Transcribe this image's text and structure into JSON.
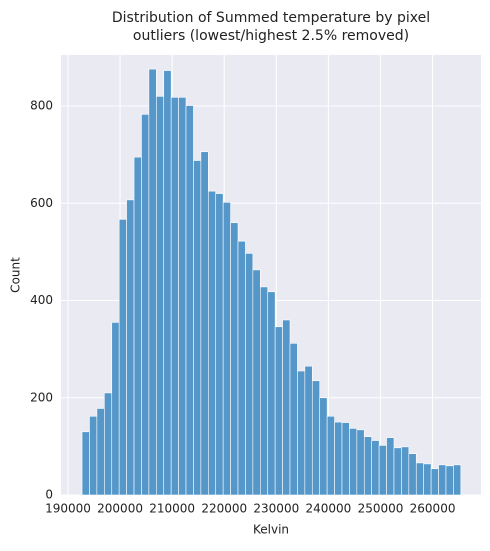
{
  "chart_data": {
    "type": "histogram",
    "title": [
      "Distribution of Summed temperature by pixel",
      "outliers (lowest/highest 2.5% removed)"
    ],
    "xlabel": "Kelvin",
    "ylabel": "Count",
    "bins": [
      192700,
      194126,
      195552,
      196978,
      198404,
      199830,
      201256,
      202682,
      204108,
      205534,
      206960,
      208386,
      209812,
      211238,
      212664,
      214090,
      215516,
      216942,
      218368,
      219794,
      221220,
      222646,
      224072,
      225498,
      226924,
      228350,
      229776,
      231202,
      232628,
      234054,
      235480,
      236906,
      238332,
      239758,
      241184,
      242610,
      244036,
      245462,
      246888,
      248314,
      249740,
      251166,
      252592,
      254018,
      255444,
      256870,
      258296,
      259722,
      261148,
      262574,
      264000,
      265426
    ],
    "counts": [
      130,
      162,
      178,
      210,
      355,
      567,
      607,
      695,
      783,
      876,
      820,
      873,
      818,
      818,
      801,
      688,
      706,
      625,
      620,
      602,
      560,
      522,
      497,
      463,
      428,
      418,
      346,
      360,
      312,
      255,
      265,
      235,
      200,
      162,
      150,
      149,
      137,
      134,
      120,
      112,
      102,
      118,
      97,
      99,
      85,
      66,
      64,
      54,
      62,
      60,
      62
    ],
    "color": "#5597c9",
    "xlim": [
      188660,
      269300
    ],
    "ylim": [
      0,
      905
    ],
    "xticks": [
      190000,
      200000,
      210000,
      220000,
      230000,
      240000,
      250000,
      260000
    ],
    "yticks": [
      0,
      200,
      400,
      600,
      800
    ],
    "grid": true
  }
}
